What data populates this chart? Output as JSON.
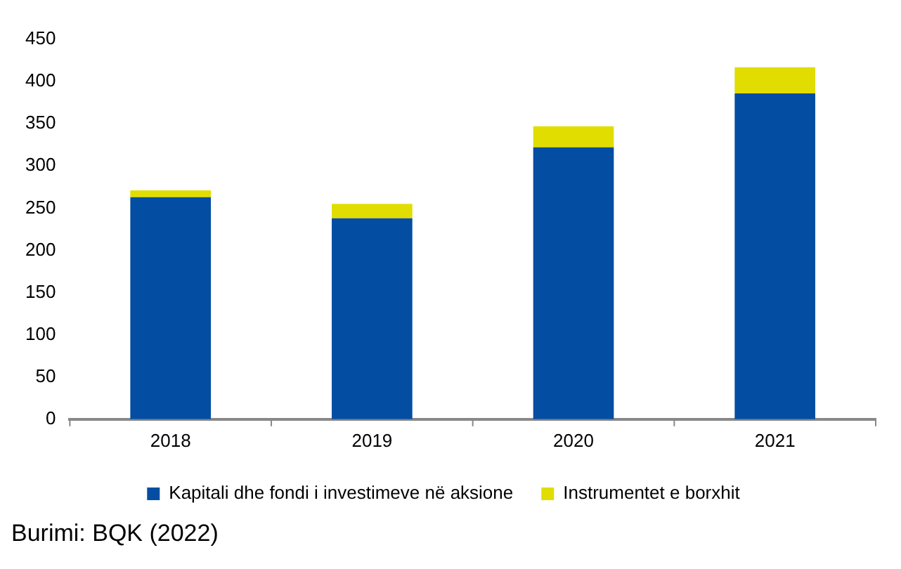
{
  "chart_data": {
    "type": "bar",
    "stacked": true,
    "categories": [
      "2018",
      "2019",
      "2020",
      "2021"
    ],
    "series": [
      {
        "name": "Kapitali dhe fondi i investimeve në aksione",
        "color": "#034ea2",
        "values": [
          263,
          238,
          322,
          386
        ]
      },
      {
        "name": "Instrumentet e borxhit",
        "color": "#e1dd00",
        "values": [
          8,
          17,
          25,
          31
        ]
      }
    ],
    "ylim": [
      0,
      450
    ],
    "yticks": [
      0,
      50,
      100,
      150,
      200,
      250,
      300,
      350,
      400,
      450
    ],
    "grid": false,
    "legend": "bottom",
    "annotations": [
      "Burimi: BQK (2022)"
    ]
  }
}
